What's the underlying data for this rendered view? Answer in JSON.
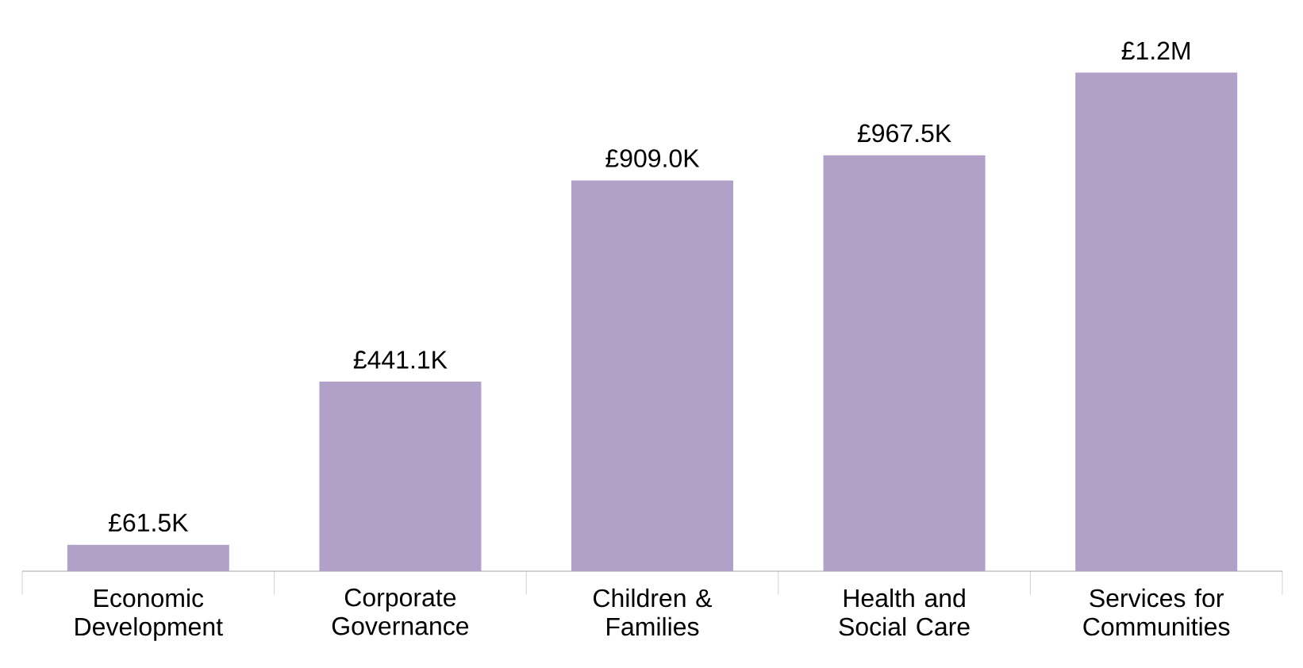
{
  "chart_data": {
    "type": "bar",
    "categories": [
      "Economic Development",
      "Corporate Governance",
      "Children & Families",
      "Health and Social Care",
      "Services for Communities"
    ],
    "values": [
      61500,
      441100,
      909000,
      967500,
      1160000
    ],
    "value_labels": [
      "£61.5K",
      "£441.1K",
      "£909.0K",
      "£967.5K",
      "£1.2M"
    ],
    "color": "#b1a0c7"
  }
}
